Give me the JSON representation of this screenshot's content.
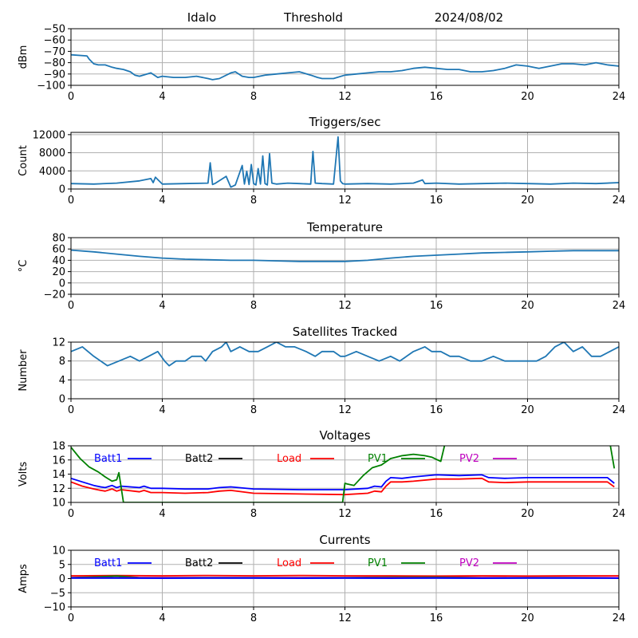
{
  "header": {
    "site": "Idalo",
    "mode": "Threshold",
    "date": "2024/08/02"
  },
  "chart_data": [
    {
      "id": "dbm",
      "type": "line",
      "title": "",
      "xlabel": "",
      "ylabel": "dBm",
      "xlim": [
        0,
        24
      ],
      "ylim": [
        -100,
        -50
      ],
      "xticks": [
        0,
        4,
        8,
        12,
        16,
        20,
        24
      ],
      "yticks": [
        -100,
        -90,
        -80,
        -70,
        -60,
        -50
      ],
      "ytick_labels": [
        "−100",
        "−90",
        "−80",
        "−70",
        "−60",
        "−50"
      ],
      "grid": true,
      "series": [
        {
          "color": "#1f77b4",
          "x": [
            0,
            0.7,
            0.8,
            1.0,
            1.2,
            1.5,
            1.8,
            2.0,
            2.3,
            2.6,
            2.8,
            3.0,
            3.5,
            3.8,
            4.0,
            4.5,
            5.0,
            5.5,
            6.0,
            6.2,
            6.5,
            7.0,
            7.2,
            7.5,
            7.8,
            8.0,
            8.5,
            9.0,
            9.5,
            10.0,
            10.5,
            10.8,
            11.0,
            11.5,
            12.0,
            12.5,
            13.0,
            13.5,
            14.0,
            14.5,
            15.0,
            15.5,
            16.0,
            16.5,
            17.0,
            17.5,
            18.0,
            18.5,
            19.0,
            19.5,
            20.0,
            20.5,
            21.0,
            21.5,
            22.0,
            22.5,
            23.0,
            23.5,
            24.0
          ],
          "y": [
            -73,
            -74,
            -77,
            -81,
            -82,
            -82,
            -84,
            -85,
            -86,
            -88,
            -91,
            -92,
            -89,
            -93,
            -92,
            -93,
            -93,
            -92,
            -94,
            -95,
            -94,
            -89,
            -88,
            -92,
            -93,
            -93,
            -91,
            -90,
            -89,
            -88,
            -91,
            -93,
            -94,
            -94,
            -91,
            -90,
            -89,
            -88,
            -88,
            -87,
            -85,
            -84,
            -85,
            -86,
            -86,
            -88,
            -88,
            -87,
            -85,
            -82,
            -83,
            -85,
            -83,
            -81,
            -81,
            -82,
            -80,
            -82,
            -83
          ]
        }
      ]
    },
    {
      "id": "triggers",
      "type": "line",
      "title": "Triggers/sec",
      "xlabel": "",
      "ylabel": "Count",
      "xlim": [
        0,
        24
      ],
      "ylim": [
        0,
        12500
      ],
      "xticks": [
        0,
        4,
        8,
        12,
        16,
        20,
        24
      ],
      "yticks": [
        0,
        4000,
        8000,
        12000
      ],
      "ytick_labels": [
        "0",
        "4000",
        "8000",
        "12000"
      ],
      "grid": true,
      "series": [
        {
          "color": "#1f77b4",
          "x": [
            0,
            1.0,
            2.0,
            3.0,
            3.5,
            3.6,
            3.7,
            4.0,
            5.0,
            6.0,
            6.1,
            6.2,
            6.3,
            6.8,
            7.0,
            7.2,
            7.5,
            7.6,
            7.7,
            7.8,
            7.9,
            8.0,
            8.1,
            8.2,
            8.3,
            8.4,
            8.5,
            8.6,
            8.7,
            8.8,
            8.9,
            9.0,
            9.5,
            10.0,
            10.5,
            10.6,
            10.7,
            11.0,
            11.5,
            11.7,
            11.8,
            11.9,
            12.0,
            13.0,
            14.0,
            15.0,
            15.4,
            15.5,
            16.0,
            17.0,
            18.0,
            19.0,
            20.0,
            21.0,
            22.0,
            23.0,
            24.0
          ],
          "y": [
            1200,
            1100,
            1300,
            1800,
            2300,
            1400,
            2600,
            1100,
            1200,
            1300,
            5800,
            1000,
            1200,
            2800,
            400,
            900,
            5200,
            1100,
            3900,
            1000,
            5400,
            1200,
            900,
            4500,
            1100,
            7300,
            1200,
            900,
            7800,
            1300,
            1200,
            1100,
            1300,
            1200,
            1100,
            8300,
            1300,
            1200,
            1100,
            11500,
            1800,
            1200,
            1100,
            1200,
            1100,
            1300,
            2000,
            1200,
            1300,
            1100,
            1200,
            1300,
            1200,
            1100,
            1300,
            1200,
            1400
          ]
        }
      ]
    },
    {
      "id": "temperature",
      "type": "line",
      "title": "Temperature",
      "xlabel": "",
      "ylabel": "°C",
      "xlim": [
        0,
        24
      ],
      "ylim": [
        -20,
        80
      ],
      "xticks": [
        0,
        4,
        8,
        12,
        16,
        20,
        24
      ],
      "yticks": [
        -20,
        0,
        20,
        40,
        60,
        80
      ],
      "ytick_labels": [
        "−20",
        "0",
        "20",
        "40",
        "60",
        "80"
      ],
      "grid": true,
      "series": [
        {
          "color": "#1f77b4",
          "x": [
            0,
            1,
            2,
            3,
            4,
            5,
            6,
            7,
            8,
            9,
            10,
            11,
            12,
            13,
            14,
            15,
            16,
            17,
            18,
            19,
            20,
            21,
            22,
            23,
            24
          ],
          "y": [
            58,
            55,
            51,
            47,
            44,
            42,
            41,
            40,
            40,
            39,
            38,
            38,
            38,
            40,
            44,
            47,
            49,
            51,
            53,
            54,
            55,
            56,
            57,
            57,
            57
          ]
        }
      ]
    },
    {
      "id": "satellites",
      "type": "line",
      "title": "Satellites Tracked",
      "xlabel": "",
      "ylabel": "Number",
      "xlim": [
        0,
        24
      ],
      "ylim": [
        0,
        12
      ],
      "xticks": [
        0,
        4,
        8,
        12,
        16,
        20,
        24
      ],
      "yticks": [
        0,
        4,
        8,
        12
      ],
      "ytick_labels": [
        "0",
        "4",
        "8",
        "12"
      ],
      "grid": true,
      "series": [
        {
          "color": "#1f77b4",
          "x": [
            0,
            0.5,
            1.0,
            1.6,
            2.1,
            2.6,
            3.0,
            3.4,
            3.8,
            4.1,
            4.3,
            4.6,
            5.0,
            5.3,
            5.7,
            5.9,
            6.2,
            6.6,
            6.8,
            7.0,
            7.4,
            7.8,
            8.2,
            8.6,
            9.0,
            9.4,
            9.8,
            10.3,
            10.7,
            11.0,
            11.5,
            11.8,
            12.0,
            12.5,
            13.0,
            13.5,
            14.0,
            14.4,
            14.7,
            15.0,
            15.5,
            15.8,
            16.2,
            16.6,
            17.0,
            17.5,
            18.0,
            18.5,
            19.0,
            19.5,
            20.0,
            20.4,
            20.8,
            21.2,
            21.6,
            22.0,
            22.4,
            22.8,
            23.2,
            23.6,
            24.0
          ],
          "y": [
            10,
            11,
            9,
            7,
            8,
            9,
            8,
            9,
            10,
            8,
            7,
            8,
            8,
            9,
            9,
            8,
            10,
            11,
            12,
            10,
            11,
            10,
            10,
            11,
            12,
            11,
            11,
            10,
            9,
            10,
            10,
            9,
            9,
            10,
            9,
            8,
            9,
            8,
            9,
            10,
            11,
            10,
            10,
            9,
            9,
            8,
            8,
            9,
            8,
            8,
            8,
            8,
            9,
            11,
            12,
            10,
            11,
            9,
            9,
            10,
            11
          ]
        }
      ]
    },
    {
      "id": "voltages",
      "type": "line",
      "title": "Voltages",
      "xlabel": "",
      "ylabel": "Volts",
      "xlim": [
        0,
        24
      ],
      "ylim": [
        10,
        18
      ],
      "xticks": [
        0,
        4,
        8,
        12,
        16,
        20,
        24
      ],
      "yticks": [
        10,
        12,
        14,
        16,
        18
      ],
      "ytick_labels": [
        "10",
        "12",
        "14",
        "16",
        "18"
      ],
      "grid": true,
      "legend": [
        {
          "name": "Batt1",
          "color": "#0000ff"
        },
        {
          "name": "Batt2",
          "color": "#000000"
        },
        {
          "name": "Load",
          "color": "#ff0000"
        },
        {
          "name": "PV1",
          "color": "#008000"
        },
        {
          "name": "PV2",
          "color": "#bf00bf"
        }
      ],
      "series": [
        {
          "name": "Batt1",
          "color": "#0000ff",
          "x": [
            0,
            0.5,
            1.0,
            1.3,
            1.5,
            1.8,
            2.0,
            2.2,
            3.0,
            3.2,
            3.5,
            4.0,
            5.0,
            6.0,
            6.5,
            7.0,
            8.0,
            10.0,
            12.0,
            13.0,
            13.3,
            13.6,
            13.8,
            14.0,
            14.5,
            15.0,
            16.0,
            17.0,
            18.0,
            18.3,
            19.0,
            20.0,
            21.0,
            22.0,
            23.0,
            23.5,
            23.8
          ],
          "y": [
            13.4,
            12.9,
            12.4,
            12.2,
            12.1,
            12.4,
            12.1,
            12.3,
            12.1,
            12.3,
            12.0,
            12.0,
            11.9,
            11.9,
            12.1,
            12.2,
            11.9,
            11.8,
            11.8,
            12.0,
            12.3,
            12.2,
            13.0,
            13.5,
            13.4,
            13.6,
            13.9,
            13.8,
            13.9,
            13.5,
            13.4,
            13.5,
            13.5,
            13.5,
            13.5,
            13.5,
            12.7
          ]
        },
        {
          "name": "Load",
          "color": "#ff0000",
          "x": [
            0,
            0.5,
            1.0,
            1.3,
            1.5,
            1.8,
            2.0,
            2.2,
            3.0,
            3.2,
            3.5,
            4.0,
            5.0,
            6.0,
            6.5,
            7.0,
            8.0,
            10.0,
            12.0,
            13.0,
            13.3,
            13.6,
            13.8,
            14.0,
            14.5,
            15.0,
            16.0,
            17.0,
            18.0,
            18.3,
            19.0,
            20.0,
            21.0,
            22.0,
            23.0,
            23.5,
            23.8
          ],
          "y": [
            12.9,
            12.3,
            11.9,
            11.7,
            11.6,
            11.9,
            11.6,
            11.8,
            11.5,
            11.7,
            11.4,
            11.4,
            11.3,
            11.4,
            11.6,
            11.7,
            11.3,
            11.2,
            11.1,
            11.3,
            11.6,
            11.5,
            12.3,
            12.9,
            12.9,
            13.0,
            13.3,
            13.3,
            13.4,
            12.9,
            12.8,
            12.9,
            12.9,
            12.9,
            12.9,
            12.9,
            12.2
          ]
        },
        {
          "name": "PV1",
          "color": "#008000",
          "x": [
            0,
            0.4,
            0.8,
            1.2,
            1.5,
            1.8,
            2.0,
            2.1,
            2.3,
            11.9,
            12.0,
            12.1,
            12.4,
            12.8,
            13.2,
            13.6,
            14.0,
            14.5,
            15.0,
            15.5,
            15.8,
            16.0,
            16.2,
            16.4,
            23.6,
            23.8
          ],
          "y": [
            17.8,
            16.2,
            15.0,
            14.3,
            13.6,
            13.0,
            13.2,
            14.2,
            10.0,
            10.0,
            12.7,
            12.6,
            12.4,
            13.8,
            14.9,
            15.3,
            16.2,
            16.6,
            16.8,
            16.6,
            16.4,
            16.1,
            15.8,
            18.5,
            18.5,
            14.8
          ]
        }
      ]
    },
    {
      "id": "currents",
      "type": "line",
      "title": "Currents",
      "xlabel": "",
      "ylabel": "Amps",
      "xlim": [
        0,
        24
      ],
      "ylim": [
        -10,
        10
      ],
      "xticks": [
        0,
        4,
        8,
        12,
        16,
        20,
        24
      ],
      "yticks": [
        -10,
        -5,
        0,
        5,
        10
      ],
      "ytick_labels": [
        "−10",
        "−5",
        "0",
        "5",
        "10"
      ],
      "grid": true,
      "legend": [
        {
          "name": "Batt1",
          "color": "#0000ff"
        },
        {
          "name": "Batt2",
          "color": "#000000"
        },
        {
          "name": "Load",
          "color": "#ff0000"
        },
        {
          "name": "PV1",
          "color": "#008000"
        },
        {
          "name": "PV2",
          "color": "#bf00bf"
        }
      ],
      "series": [
        {
          "name": "Load",
          "color": "#ff0000",
          "x": [
            0,
            2,
            4,
            6,
            8,
            10,
            12,
            14,
            16,
            18,
            20,
            22,
            24
          ],
          "y": [
            1.0,
            1.1,
            1.0,
            1.1,
            1.0,
            1.1,
            1.0,
            1.0,
            0.9,
            1.0,
            0.9,
            1.0,
            1.0
          ]
        },
        {
          "name": "PV1",
          "color": "#008000",
          "x": [
            0,
            1,
            2,
            3,
            12,
            14,
            16,
            18,
            20,
            22,
            24
          ],
          "y": [
            0.4,
            0.6,
            0.9,
            0.4,
            0.4,
            0.5,
            0.5,
            0.4,
            0.4,
            0.4,
            0.3
          ]
        },
        {
          "name": "PV2",
          "color": "#bf00bf",
          "x": [
            0,
            24
          ],
          "y": [
            0.3,
            0.3
          ]
        },
        {
          "name": "Batt1",
          "color": "#0000ff",
          "x": [
            0,
            2,
            4,
            6,
            8,
            10,
            12,
            14,
            16,
            18,
            20,
            22,
            24
          ],
          "y": [
            0.2,
            0.2,
            0.1,
            0.2,
            0.2,
            0.1,
            0.2,
            0.1,
            0.2,
            0.1,
            0.2,
            0.2,
            0.1
          ]
        }
      ]
    }
  ]
}
